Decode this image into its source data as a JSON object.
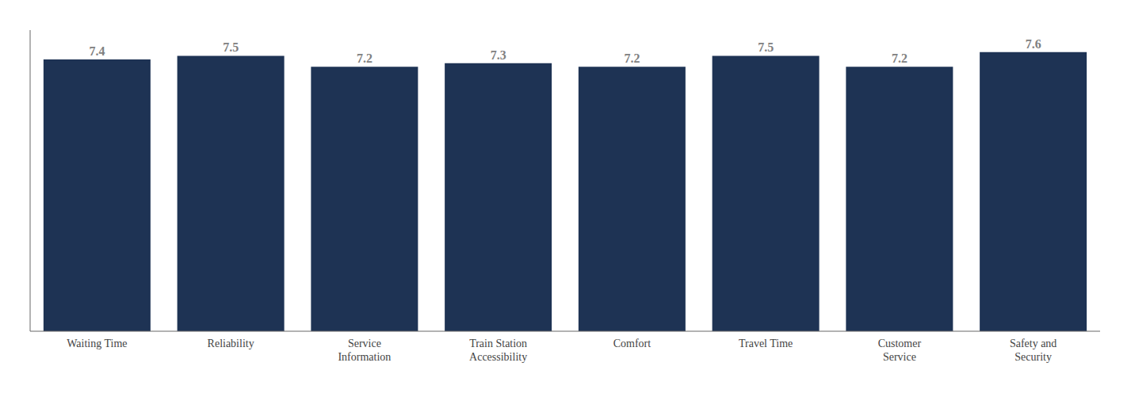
{
  "chart_data": {
    "type": "bar",
    "categories": [
      "Waiting Time",
      "Reliability",
      "Service\nInformation",
      "Train Station\nAccessibility",
      "Comfort",
      "Travel Time",
      "Customer\nService",
      "Safety and\nSecurity"
    ],
    "values": [
      7.4,
      7.5,
      7.2,
      7.3,
      7.2,
      7.5,
      7.2,
      7.6
    ],
    "color": "#1e3354",
    "ylim": [
      0,
      8.2
    ],
    "grid": false,
    "data_labels": true,
    "tick_labels": "x"
  }
}
